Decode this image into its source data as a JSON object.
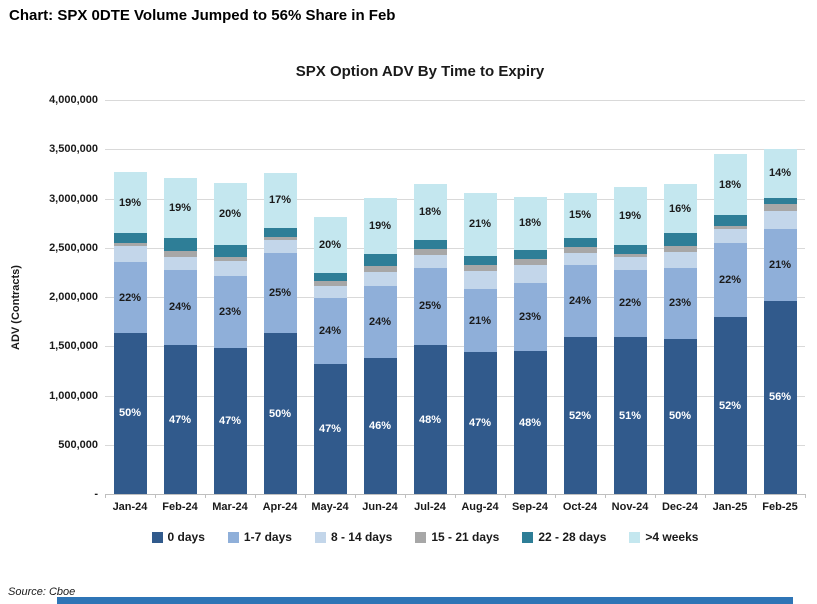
{
  "page": {
    "header_title": "Chart: SPX 0DTE Volume Jumped to 56% Share in Feb",
    "source": "Source: Cboe"
  },
  "chart_data": {
    "type": "bar",
    "stacked": true,
    "title": "SPX Option ADV By Time to Expiry",
    "xlabel": "",
    "ylabel": "ADV (Contracts)",
    "ylim": [
      0,
      4000000
    ],
    "ytick_step": 500000,
    "ytick_labels": [
      "4,000,000",
      "3,500,000",
      "3,000,000",
      "2,500,000",
      "2,000,000",
      "1,500,000",
      "1,000,000",
      "500,000",
      "-"
    ],
    "grid": true,
    "legend_position": "bottom",
    "categories": [
      "Jan-24",
      "Feb-24",
      "Mar-24",
      "Apr-24",
      "May-24",
      "Jun-24",
      "Jul-24",
      "Aug-24",
      "Sep-24",
      "Oct-24",
      "Nov-24",
      "Dec-24",
      "Jan-25",
      "Feb-25"
    ],
    "totals_adv_contracts": [
      3270000,
      3210000,
      3160000,
      3260000,
      2810000,
      3010000,
      3150000,
      3060000,
      3020000,
      3060000,
      3120000,
      3150000,
      3450000,
      3500000
    ],
    "series": [
      {
        "name": "0 days",
        "color": "#315A8C",
        "label_color": "#ffffff",
        "show_labels": true,
        "pct": [
          50,
          47,
          47,
          50,
          47,
          46,
          48,
          47,
          48,
          52,
          51,
          50,
          52,
          56
        ]
      },
      {
        "name": "1-7 days",
        "color": "#8FAFD9",
        "label_color": "#1a1a1a",
        "show_labels": true,
        "pct": [
          22,
          24,
          23,
          25,
          24,
          24,
          25,
          21,
          23,
          24,
          22,
          23,
          22,
          21
        ]
      },
      {
        "name": "8 - 14 days",
        "color": "#C3D6EA",
        "label_color": "#1a1a1a",
        "show_labels": false,
        "pct": [
          5,
          4,
          5,
          4,
          4,
          5,
          4,
          6,
          6,
          4,
          4,
          5,
          4,
          5
        ]
      },
      {
        "name": "15 - 21 days",
        "color": "#A7A7A7",
        "label_color": "#1a1a1a",
        "show_labels": false,
        "pct": [
          1,
          2,
          1,
          1,
          2,
          2,
          2,
          2,
          2,
          2,
          1,
          2,
          1,
          2
        ]
      },
      {
        "name": "22 - 28 days",
        "color": "#2E7E97",
        "label_color": "#ffffff",
        "show_labels": false,
        "pct": [
          3,
          4,
          4,
          3,
          3,
          4,
          3,
          3,
          3,
          3,
          3,
          4,
          3,
          2
        ]
      },
      {
        "name": ">4 weeks",
        "color": "#C4E7EF",
        "label_color": "#1a1a1a",
        "show_labels": true,
        "pct": [
          19,
          19,
          20,
          17,
          20,
          19,
          18,
          21,
          18,
          15,
          19,
          16,
          18,
          14
        ]
      }
    ]
  },
  "footer": {
    "divider_color": "#2E75B6"
  }
}
